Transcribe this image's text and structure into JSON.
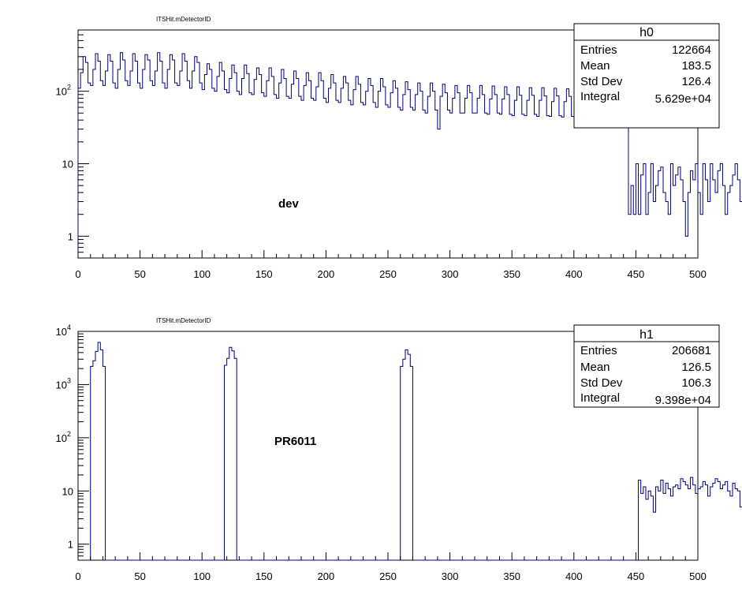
{
  "chart_data": [
    {
      "type": "histogram",
      "title": "ITSHit.mDetectorID",
      "annotation": "dev",
      "log_y": true,
      "xlim": [
        0,
        500
      ],
      "ylim": [
        0.5,
        700
      ],
      "x_ticks": [
        "0",
        "50",
        "100",
        "150",
        "200",
        "250",
        "300",
        "350",
        "400",
        "450",
        "500"
      ],
      "y_ticks": [
        "1",
        "10",
        "10^2"
      ],
      "line_color": "#000080",
      "stats": {
        "name": "h0",
        "rows": [
          {
            "label": "Entries",
            "value": "122664"
          },
          {
            "label": "Mean",
            "value": "183.5"
          },
          {
            "label": "Std Dev",
            "value": "126.4"
          },
          {
            "label": "Integral",
            "value": "5.629e+04"
          }
        ]
      },
      "series": [
        {
          "bin_width": 2,
          "x_start": 0,
          "values": [
            110,
            180,
            300,
            250,
            130,
            120,
            200,
            330,
            260,
            140,
            120,
            190,
            320,
            260,
            130,
            110,
            200,
            340,
            270,
            140,
            120,
            190,
            330,
            260,
            130,
            110,
            200,
            320,
            270,
            140,
            120,
            190,
            340,
            260,
            130,
            110,
            200,
            320,
            270,
            130,
            120,
            190,
            330,
            260,
            140,
            110,
            190,
            300,
            250,
            130,
            105,
            170,
            240,
            200,
            110,
            100,
            160,
            250,
            190,
            105,
            95,
            150,
            230,
            180,
            100,
            90,
            150,
            230,
            175,
            95,
            90,
            145,
            210,
            170,
            95,
            85,
            140,
            210,
            160,
            90,
            80,
            130,
            200,
            150,
            85,
            80,
            125,
            190,
            150,
            85,
            75,
            120,
            180,
            140,
            80,
            75,
            115,
            180,
            140,
            80,
            70,
            110,
            170,
            130,
            75,
            70,
            110,
            160,
            130,
            75,
            65,
            105,
            160,
            125,
            70,
            65,
            100,
            150,
            120,
            70,
            60,
            100,
            150,
            115,
            65,
            60,
            95,
            140,
            110,
            60,
            55,
            90,
            135,
            105,
            60,
            55,
            90,
            130,
            100,
            55,
            50,
            85,
            130,
            100,
            55,
            30,
            85,
            125,
            95,
            55,
            50,
            80,
            120,
            95,
            50,
            50,
            80,
            120,
            95,
            50,
            50,
            80,
            120,
            90,
            50,
            48,
            78,
            118,
            90,
            50,
            48,
            78,
            115,
            90,
            48,
            46,
            75,
            115,
            88,
            48,
            46,
            75,
            112,
            88,
            48,
            45,
            75,
            112,
            86,
            46,
            45,
            72,
            110,
            86,
            46,
            44,
            72,
            108,
            85,
            45,
            44,
            70,
            108,
            84,
            45,
            43,
            70,
            105,
            82,
            44,
            42,
            70,
            105,
            82,
            44,
            42,
            68,
            104,
            80,
            43,
            80,
            42,
            2,
            5,
            2,
            10,
            2,
            7,
            10,
            2,
            4,
            10,
            3,
            5,
            8,
            9,
            4,
            3,
            2,
            10,
            5,
            7,
            9,
            6,
            3,
            1,
            4,
            8,
            6,
            10,
            4,
            2,
            10,
            6,
            3,
            10,
            6,
            4,
            8,
            10,
            5,
            2,
            4,
            5,
            7,
            10,
            6,
            3,
            8,
            4,
            3,
            8,
            10,
            9,
            6,
            4,
            3
          ]
        }
      ]
    },
    {
      "type": "histogram",
      "title": "ITSHit.mDetectorID",
      "annotation": "PR6011",
      "log_y": true,
      "xlim": [
        0,
        500
      ],
      "ylim": [
        0.5,
        10000
      ],
      "x_ticks": [
        "0",
        "50",
        "100",
        "150",
        "200",
        "250",
        "300",
        "350",
        "400",
        "450",
        "500"
      ],
      "y_ticks": [
        "1",
        "10",
        "10^2",
        "10^3",
        "10^4"
      ],
      "line_color": "#000080",
      "stats": {
        "name": "h1",
        "rows": [
          {
            "label": "Entries",
            "value": "206681"
          },
          {
            "label": "Mean",
            "value": "126.5"
          },
          {
            "label": "Std Dev",
            "value": "106.3"
          },
          {
            "label": "Integral",
            "value": "9.398e+04"
          }
        ]
      },
      "series": [
        {
          "bin_width": 2,
          "x_start": 0,
          "values": [
            0,
            0,
            0,
            0,
            0,
            2200,
            2800,
            4200,
            6200,
            4500,
            2200,
            0,
            0,
            0,
            0,
            0,
            0,
            0,
            0,
            0,
            0,
            0,
            0,
            0,
            0,
            0,
            0,
            0,
            0,
            0,
            0,
            0,
            0,
            0,
            0,
            0,
            0,
            0,
            0,
            0,
            0,
            0,
            0,
            0,
            0,
            0,
            0,
            0,
            0,
            0,
            0,
            0,
            0,
            0,
            0,
            0,
            0,
            0,
            0,
            2300,
            3100,
            5000,
            4300,
            3100,
            0,
            0,
            0,
            0,
            0,
            0,
            0,
            0,
            0,
            0,
            0,
            0,
            0,
            0,
            0,
            0,
            0,
            0,
            0,
            0,
            0,
            0,
            0,
            0,
            0,
            0,
            0,
            0,
            0,
            0,
            0,
            0,
            0,
            0,
            0,
            0,
            0,
            0,
            0,
            0,
            0,
            0,
            0,
            0,
            0,
            0,
            0,
            0,
            0,
            0,
            0,
            0,
            0,
            0,
            0,
            0,
            0,
            0,
            0,
            0,
            0,
            0,
            0,
            0,
            0,
            0,
            2200,
            3000,
            4500,
            3700,
            2200,
            0,
            0,
            0,
            0,
            0,
            0,
            0,
            0,
            0,
            0,
            0,
            0,
            0,
            0,
            0,
            0,
            0,
            0,
            0,
            0,
            0,
            0,
            0,
            0,
            0,
            0,
            0,
            0,
            0,
            0,
            0,
            0,
            0,
            0,
            0,
            0,
            0,
            0,
            0,
            0,
            0,
            0,
            0,
            0,
            0,
            0,
            0,
            0,
            0,
            0,
            0,
            0,
            0,
            0,
            0,
            0,
            0,
            0,
            0,
            0,
            0,
            0,
            0,
            0,
            0,
            0,
            0,
            0,
            0,
            0,
            0,
            0,
            0,
            0,
            0,
            0,
            0,
            0,
            0,
            0,
            0,
            0,
            0,
            0,
            0,
            0,
            0,
            0,
            0,
            0,
            0,
            16,
            9,
            12,
            7,
            10,
            8,
            4,
            12,
            10,
            16,
            9,
            14,
            11,
            8,
            12,
            13,
            11,
            17,
            15,
            13,
            11,
            18,
            13,
            9,
            11,
            12,
            15,
            13,
            8,
            12,
            14,
            17,
            15,
            11,
            13,
            15,
            10,
            8,
            14,
            11,
            10,
            5,
            10,
            3,
            12,
            9,
            7,
            14,
            16,
            10,
            8,
            6,
            12,
            16,
            6,
            10,
            2,
            15,
            11
          ]
        }
      ]
    }
  ]
}
